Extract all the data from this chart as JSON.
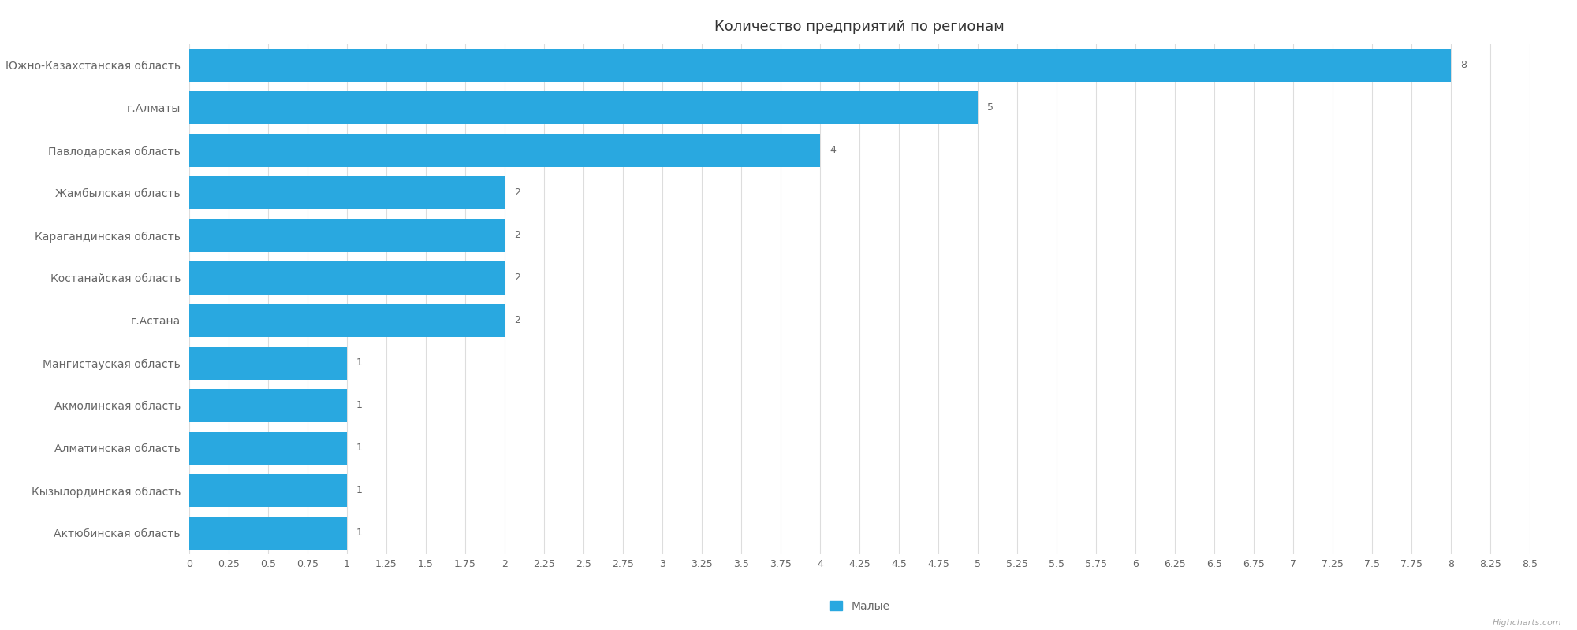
{
  "title": "Количество предприятий по регионам",
  "categories": [
    "Актюбинская область",
    "Кызылординская область",
    "Алматинская область",
    "Акмолинская область",
    "Мангистауская область",
    "г.Астана",
    "Костанайская область",
    "Карагандинская область",
    "Жамбылская область",
    "Павлодарская область",
    "г.Алматы",
    "Южно-Казахстанская область"
  ],
  "values": [
    1,
    1,
    1,
    1,
    1,
    2,
    2,
    2,
    2,
    4,
    5,
    8
  ],
  "bar_color": "#29a8e0",
  "background_color": "#ffffff",
  "grid_color": "#dddddd",
  "text_color": "#666666",
  "title_color": "#333333",
  "legend_label": "Малые",
  "xlim": [
    0,
    8.5
  ],
  "xticks": [
    0,
    0.25,
    0.5,
    0.75,
    1,
    1.25,
    1.5,
    1.75,
    2,
    2.25,
    2.5,
    2.75,
    3,
    3.25,
    3.5,
    3.75,
    4,
    4.25,
    4.5,
    4.75,
    5,
    5.25,
    5.5,
    5.75,
    6,
    6.25,
    6.5,
    6.75,
    7,
    7.25,
    7.5,
    7.75,
    8,
    8.25,
    8.5
  ],
  "bar_height": 0.78,
  "title_fontsize": 13,
  "label_fontsize": 10,
  "tick_fontsize": 9,
  "value_fontsize": 9,
  "legend_fontsize": 10,
  "watermark": "Highcharts.com"
}
